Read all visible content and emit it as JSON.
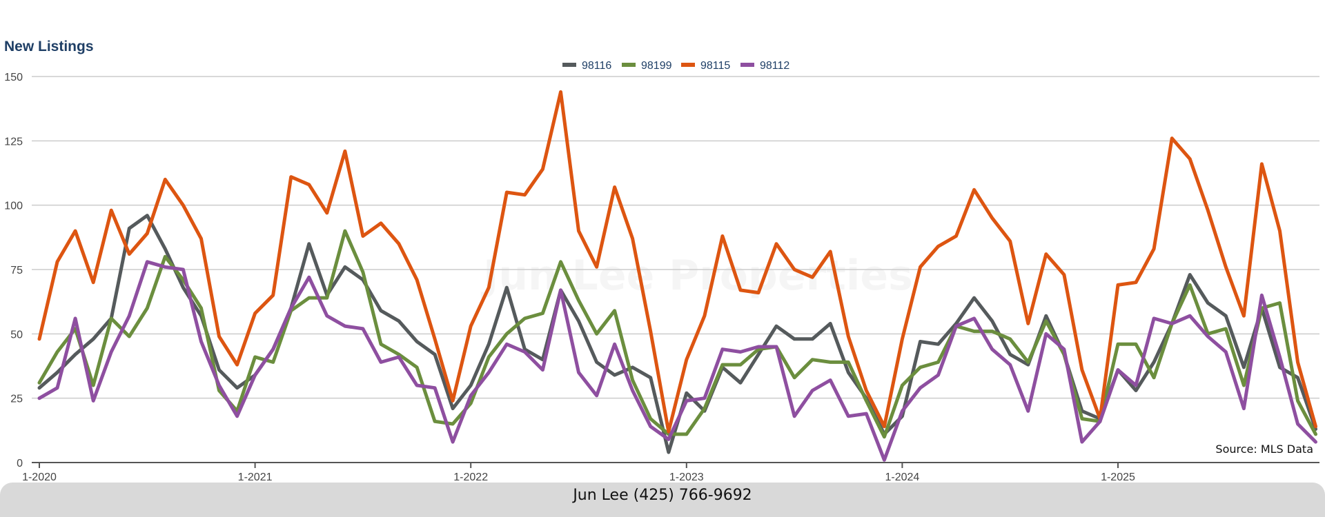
{
  "footer": {
    "contact": "Jun Lee (425) 766-9692"
  },
  "watermark": "Jun Lee Properties",
  "source": "Source: MLS Data",
  "colors": {
    "98116": "#555a5c",
    "98199": "#6b8e3e",
    "98115": "#dd5511",
    "98112": "#8e4fa0",
    "grid": "#cccccc",
    "title": "#1f3f66"
  },
  "chart_data": {
    "type": "line",
    "title": "New Listings",
    "xlabel": "",
    "ylabel": "",
    "ylim": [
      0,
      150
    ],
    "yticks": [
      0,
      25,
      50,
      75,
      100,
      125,
      150
    ],
    "xtick_labels": [
      "1-2020",
      "1-2021",
      "1-2022",
      "1-2023",
      "1-2024",
      "1-2025"
    ],
    "start": "1-2020",
    "period": "monthly",
    "legend_position": "top-center",
    "series": [
      {
        "name": "98116",
        "color": "#555a5c",
        "values": [
          29,
          35,
          42,
          48,
          56,
          91,
          96,
          83,
          68,
          57,
          36,
          29,
          34,
          44,
          60,
          85,
          65,
          76,
          71,
          59,
          55,
          47,
          42,
          21,
          30,
          46,
          68,
          44,
          40,
          67,
          55,
          39,
          34,
          37,
          33,
          4,
          27,
          20,
          37,
          31,
          42,
          53,
          48,
          48,
          54,
          35,
          25,
          11,
          18,
          47,
          46,
          54,
          64,
          55,
          42,
          38,
          57,
          42,
          20,
          17,
          36,
          28,
          39,
          54,
          73,
          62,
          57,
          37,
          60,
          37,
          33,
          13
        ]
      },
      {
        "name": "98199",
        "color": "#6b8e3e",
        "values": [
          31,
          43,
          52,
          30,
          56,
          49,
          60,
          80,
          71,
          60,
          28,
          20,
          41,
          39,
          59,
          64,
          64,
          90,
          74,
          46,
          42,
          37,
          16,
          15,
          23,
          41,
          50,
          56,
          58,
          78,
          63,
          50,
          59,
          32,
          17,
          11,
          11,
          21,
          38,
          38,
          44,
          45,
          33,
          40,
          39,
          39,
          24,
          10,
          30,
          37,
          39,
          53,
          51,
          51,
          48,
          39,
          55,
          42,
          17,
          16,
          46,
          46,
          33,
          54,
          69,
          50,
          52,
          30,
          60,
          62,
          24,
          11
        ]
      },
      {
        "name": "98115",
        "color": "#dd5511",
        "values": [
          48,
          78,
          90,
          70,
          98,
          81,
          89,
          110,
          100,
          87,
          49,
          38,
          58,
          65,
          111,
          108,
          97,
          121,
          88,
          93,
          85,
          71,
          48,
          24,
          53,
          68,
          105,
          104,
          114,
          144,
          90,
          76,
          107,
          87,
          51,
          12,
          40,
          57,
          88,
          67,
          66,
          85,
          75,
          72,
          82,
          49,
          28,
          14,
          48,
          76,
          84,
          88,
          106,
          95,
          86,
          54,
          81,
          73,
          36,
          17,
          69,
          70,
          83,
          126,
          118,
          98,
          76,
          57,
          116,
          90,
          39,
          14
        ]
      },
      {
        "name": "98112",
        "color": "#8e4fa0",
        "values": [
          25,
          29,
          56,
          24,
          43,
          57,
          78,
          76,
          75,
          47,
          30,
          18,
          34,
          44,
          60,
          72,
          57,
          53,
          52,
          39,
          41,
          30,
          29,
          8,
          26,
          35,
          46,
          43,
          36,
          67,
          35,
          26,
          46,
          28,
          14,
          9,
          24,
          25,
          44,
          43,
          45,
          45,
          18,
          28,
          32,
          18,
          19,
          1,
          20,
          29,
          34,
          53,
          56,
          44,
          38,
          20,
          50,
          44,
          8,
          16,
          36,
          30,
          56,
          54,
          57,
          49,
          43,
          21,
          65,
          41,
          15,
          8
        ]
      }
    ]
  }
}
